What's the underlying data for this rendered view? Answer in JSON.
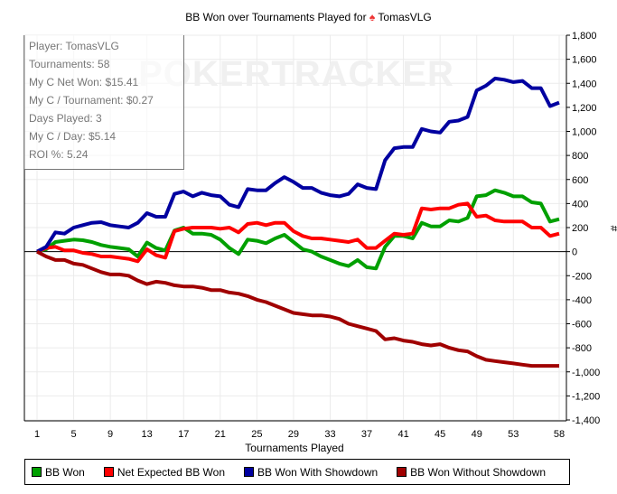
{
  "title": {
    "prefix": "BB Won over Tournaments Played for",
    "icon": "spade-icon",
    "player": "TomasVLG"
  },
  "watermark": "POKERTRACKER",
  "stats": [
    "Player: TomasVLG",
    "Tournaments: 58",
    "My C Net Won: $15.41",
    "My C / Tournament: $0.27",
    "Days Played: 3",
    "My C / Day: $5.14",
    "ROI %: 5.24"
  ],
  "chart_data": {
    "type": "line",
    "title": "BB Won over Tournaments Played for TomasVLG",
    "xlabel": "Tournaments Played",
    "ylabel": "#",
    "xlim": [
      1,
      58
    ],
    "ylim": [
      -1400,
      1800
    ],
    "x_ticks": [
      1,
      5,
      9,
      13,
      17,
      21,
      25,
      29,
      33,
      37,
      41,
      45,
      49,
      53,
      58
    ],
    "y_ticks": [
      1800,
      1600,
      1400,
      1200,
      1000,
      800,
      600,
      400,
      200,
      0,
      -200,
      -400,
      -600,
      -800,
      -1000,
      -1200,
      -1400
    ],
    "y_tick_labels": [
      "1,800",
      "1,600",
      "1,400",
      "1,200",
      "1,000",
      "800",
      "600",
      "400",
      "200",
      "0",
      "-200",
      "-400",
      "-600",
      "-800",
      "-1,000",
      "-1,200",
      "-1,400"
    ],
    "grid": true,
    "legend_position": "bottom",
    "series": [
      {
        "name": "BB Won",
        "color": "#00a000",
        "values": [
          0,
          20,
          80,
          90,
          100,
          95,
          80,
          55,
          40,
          30,
          20,
          -40,
          75,
          30,
          10,
          175,
          200,
          150,
          150,
          140,
          100,
          30,
          -20,
          100,
          90,
          70,
          110,
          140,
          80,
          20,
          0,
          -40,
          -70,
          -100,
          -120,
          -70,
          -130,
          -140,
          40,
          130,
          130,
          110,
          240,
          210,
          210,
          260,
          250,
          280,
          460,
          470,
          510,
          490,
          460,
          460,
          410,
          400,
          250,
          270
        ]
      },
      {
        "name": "Net Expected BB Won",
        "color": "#ff0000",
        "values": [
          0,
          30,
          40,
          10,
          10,
          -10,
          -20,
          -40,
          -40,
          -50,
          -60,
          -80,
          20,
          -30,
          -50,
          170,
          190,
          200,
          200,
          200,
          190,
          200,
          160,
          230,
          240,
          220,
          240,
          240,
          170,
          130,
          110,
          110,
          100,
          90,
          80,
          100,
          30,
          30,
          90,
          150,
          140,
          150,
          360,
          350,
          360,
          360,
          390,
          400,
          290,
          300,
          260,
          250,
          250,
          250,
          200,
          200,
          130,
          150
        ]
      },
      {
        "name": "BB Won With Showdown",
        "color": "#0000a0",
        "values": [
          0,
          40,
          160,
          150,
          200,
          220,
          240,
          245,
          220,
          210,
          200,
          240,
          320,
          290,
          290,
          480,
          500,
          460,
          490,
          470,
          460,
          390,
          370,
          520,
          510,
          510,
          570,
          620,
          580,
          530,
          530,
          490,
          470,
          460,
          480,
          560,
          530,
          520,
          760,
          860,
          870,
          870,
          1020,
          1000,
          990,
          1080,
          1090,
          1120,
          1340,
          1380,
          1440,
          1430,
          1410,
          1420,
          1360,
          1360,
          1210,
          1240
        ]
      },
      {
        "name": "BB Won Without Showdown",
        "color": "#a00000",
        "values": [
          0,
          -40,
          -70,
          -70,
          -100,
          -110,
          -140,
          -170,
          -190,
          -190,
          -200,
          -240,
          -270,
          -250,
          -260,
          -280,
          -290,
          -290,
          -300,
          -320,
          -320,
          -340,
          -350,
          -370,
          -400,
          -420,
          -450,
          -480,
          -510,
          -520,
          -530,
          -530,
          -540,
          -560,
          -600,
          -620,
          -640,
          -660,
          -730,
          -720,
          -740,
          -750,
          -770,
          -780,
          -770,
          -800,
          -820,
          -830,
          -870,
          -900,
          -910,
          -920,
          -930,
          -940,
          -950,
          -950,
          -950,
          -950
        ]
      }
    ]
  }
}
